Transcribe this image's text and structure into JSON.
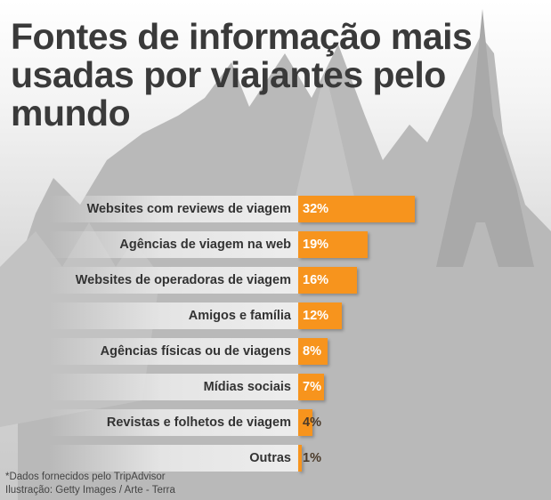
{
  "chart_data": {
    "type": "bar",
    "orientation": "horizontal",
    "title": "Fontes de informação mais usadas por viajantes pelo mundo",
    "categories": [
      "Websites com reviews de viagem",
      "Agências de viagem na web",
      "Websites de operadoras de viagem",
      "Amigos e família",
      "Agências físicas ou de viagens",
      "Mídias sociais",
      "Revistas e folhetos de viagem",
      "Outras"
    ],
    "values": [
      32,
      19,
      16,
      12,
      8,
      7,
      4,
      1
    ],
    "labels": [
      "32%",
      "19%",
      "16%",
      "12%",
      "8%",
      "7%",
      "4%",
      "1%"
    ],
    "unit": "%",
    "xlim": [
      0,
      40
    ],
    "bar_color": "#f7941d",
    "grid": false
  },
  "footnotes": {
    "source": "*Dados fornecidos pelo TripAdvisor",
    "credit": "Ilustração: Getty Images / Arte - Terra"
  }
}
